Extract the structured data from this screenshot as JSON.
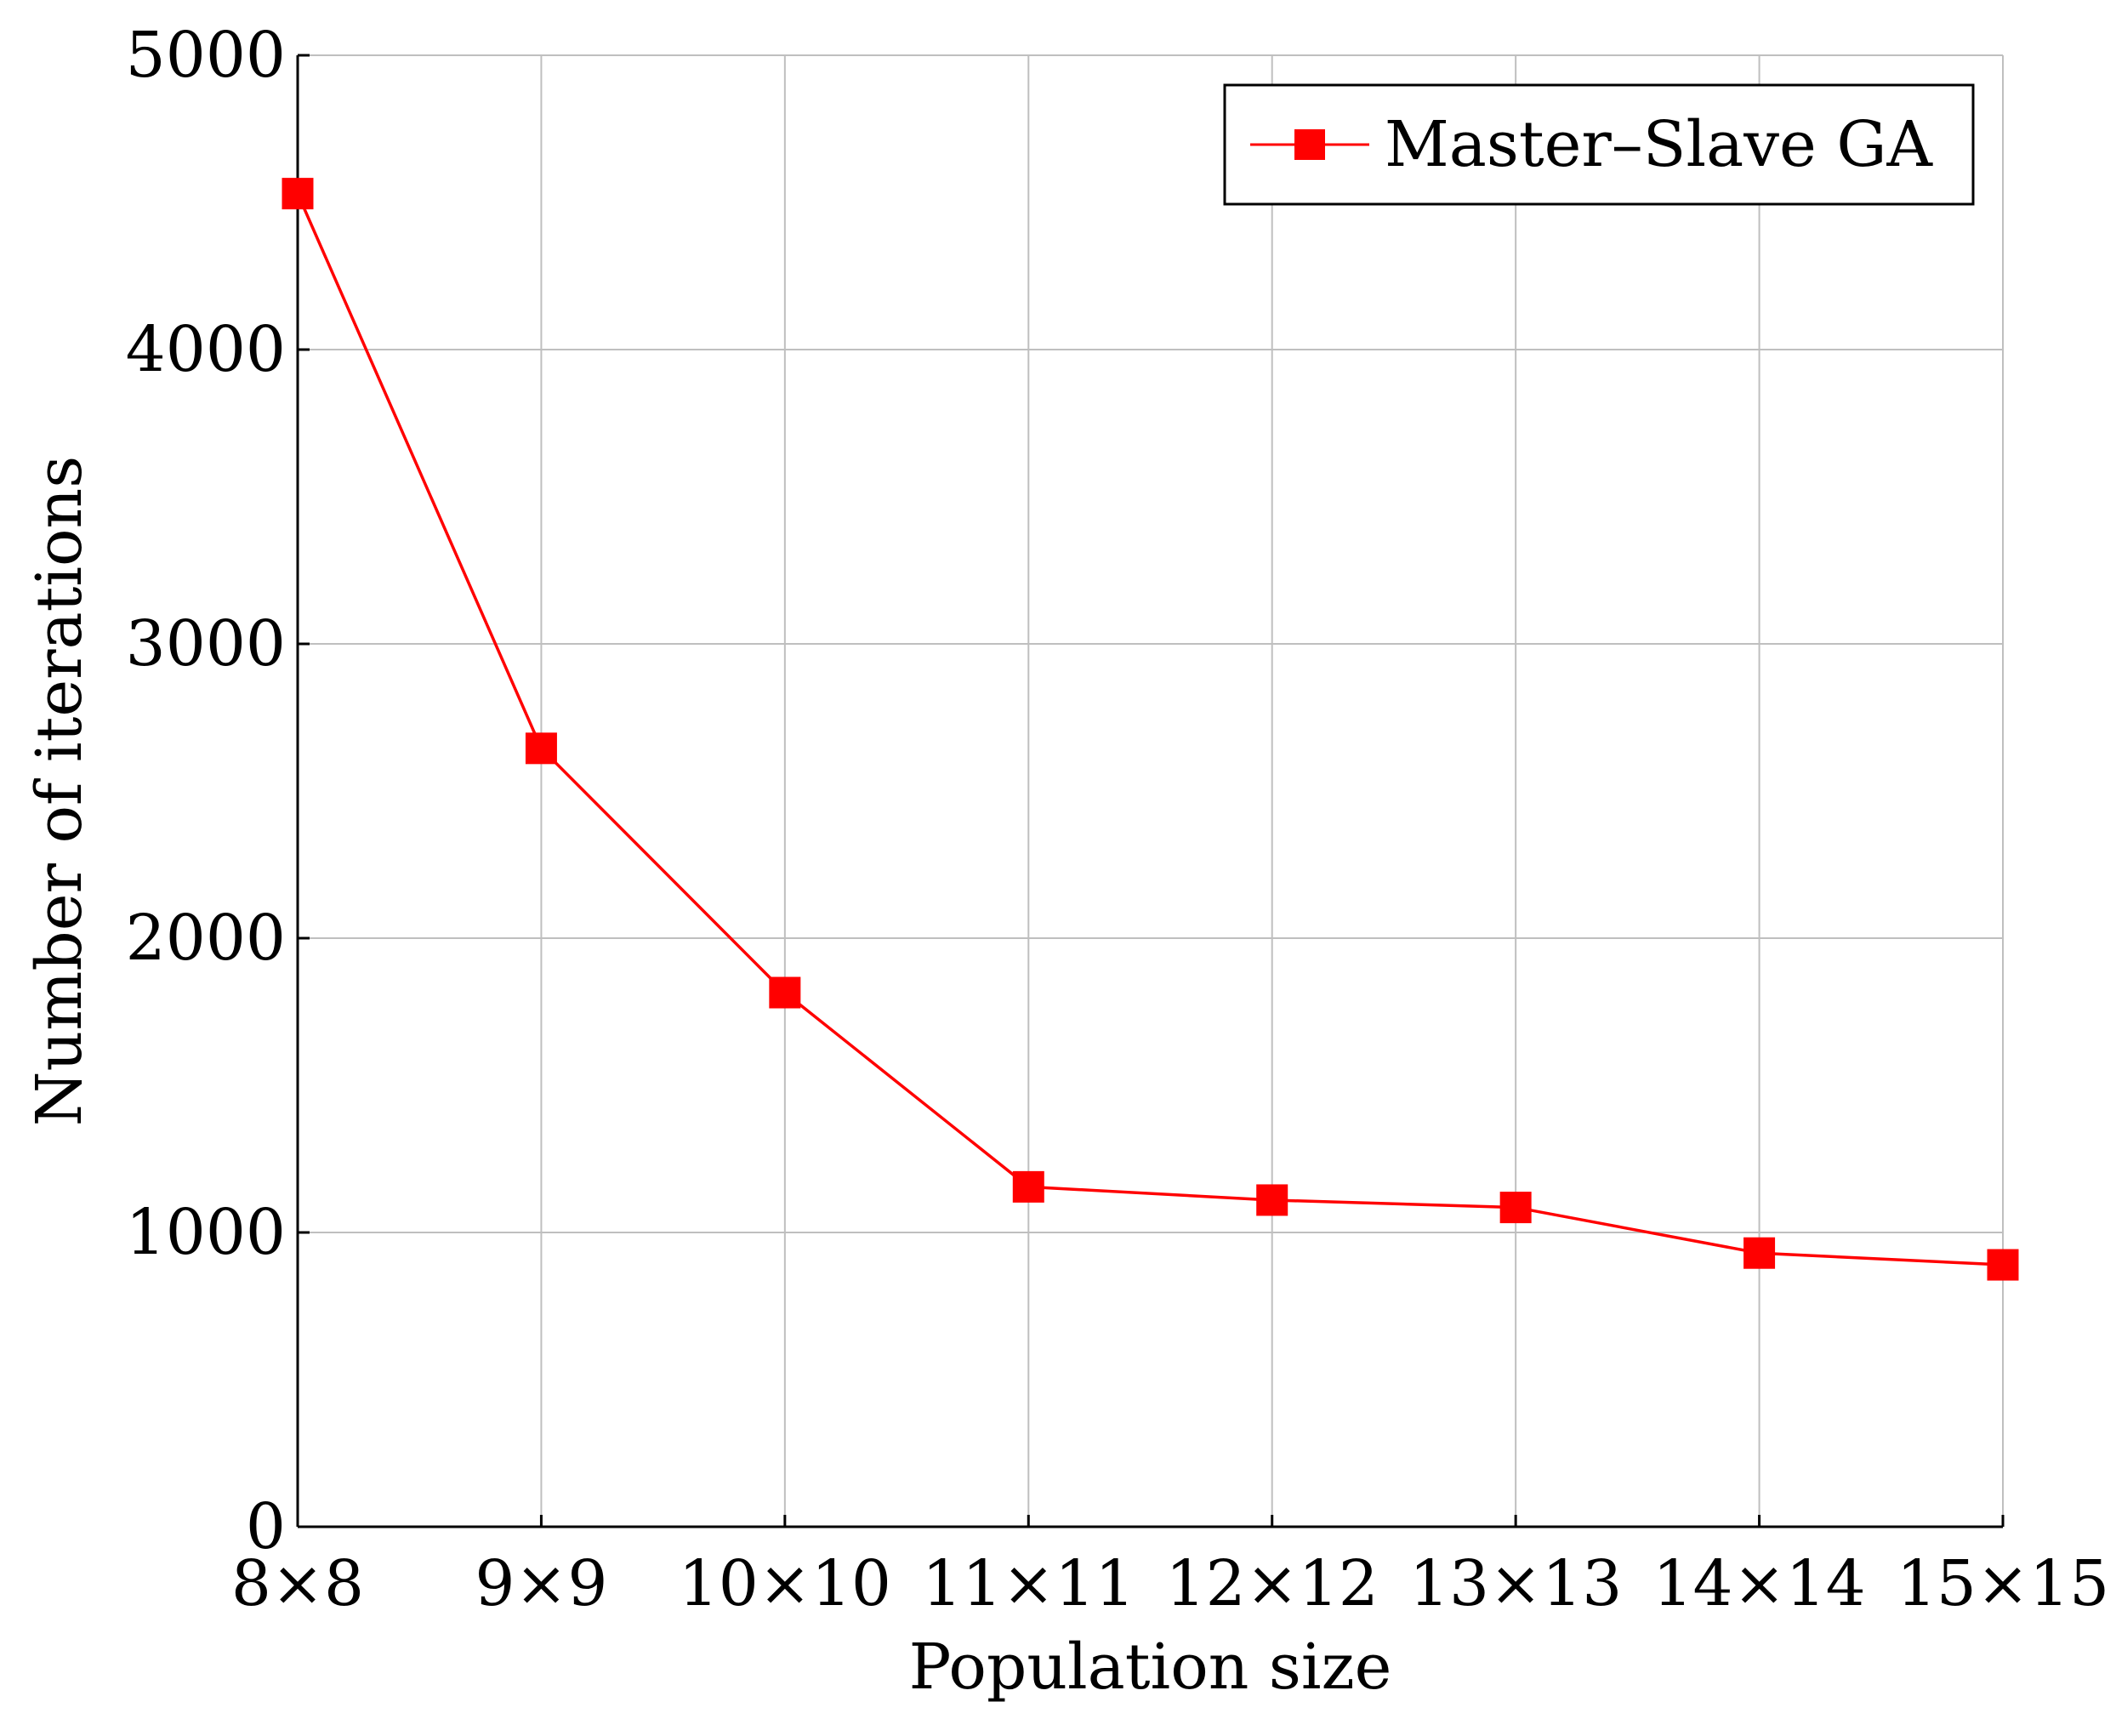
{
  "chart_data": {
    "type": "line",
    "title": "",
    "xlabel": "Population size",
    "ylabel": "Number of iterations",
    "categories": [
      "8×8",
      "9×9",
      "10×10",
      "11×11",
      "12×12",
      "13×13",
      "14×14",
      "15×15"
    ],
    "ylim": [
      0,
      5000
    ],
    "yticks": [
      0,
      1000,
      2000,
      3000,
      4000,
      5000
    ],
    "grid": true,
    "legend_position": "top-right",
    "series": [
      {
        "name": "Master–Slave GA",
        "color": "#ff0000",
        "marker": "square",
        "values": [
          4530,
          2645,
          1815,
          1155,
          1110,
          1085,
          930,
          890
        ]
      }
    ]
  }
}
